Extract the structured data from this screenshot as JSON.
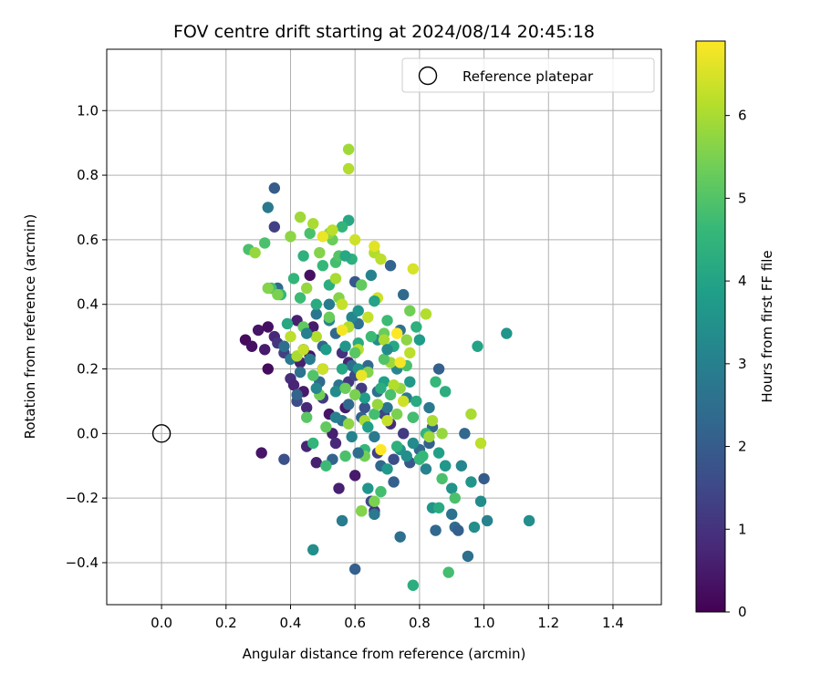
{
  "chart_data": {
    "type": "scatter",
    "title": "FOV centre drift starting at 2024/08/14 20:45:18",
    "xlabel": "Angular distance from reference (arcmin)",
    "ylabel": "Rotation from reference (arcmin)",
    "xlim": [
      -0.17,
      1.55
    ],
    "ylim": [
      -0.53,
      1.19
    ],
    "xticks": [
      0.0,
      0.2,
      0.4,
      0.6,
      0.8,
      1.0,
      1.2,
      1.4
    ],
    "xtick_labels": [
      "0.0",
      "0.2",
      "0.4",
      "0.6",
      "0.8",
      "1.0",
      "1.2",
      "1.4"
    ],
    "yticks": [
      -0.4,
      -0.2,
      0.0,
      0.2,
      0.4,
      0.6,
      0.8,
      1.0
    ],
    "ytick_labels": [
      "−0.4",
      "−0.2",
      "0.0",
      "0.2",
      "0.4",
      "0.6",
      "0.8",
      "1.0"
    ],
    "grid": true,
    "legend": {
      "position": "top-right",
      "label": "Reference platepar"
    },
    "reference_point": {
      "x": 0.0,
      "y": 0.0,
      "marker": "hollow-circle"
    },
    "colorbar": {
      "label": "Hours from first FF file",
      "range": [
        0,
        6.9
      ],
      "ticks": [
        0,
        1,
        2,
        3,
        4,
        5,
        6
      ],
      "tick_labels": [
        "0",
        "1",
        "2",
        "3",
        "4",
        "5",
        "6"
      ],
      "colormap": "viridis",
      "stops": [
        "#440154",
        "#482878",
        "#3e4a89",
        "#31688e",
        "#26828e",
        "#1f9e89",
        "#35b779",
        "#6ece58",
        "#b5de2b",
        "#fde725"
      ]
    },
    "points": [
      [
        0.26,
        0.29,
        0.2
      ],
      [
        0.28,
        0.27,
        0.3
      ],
      [
        0.3,
        0.32,
        0.4
      ],
      [
        0.32,
        0.26,
        0.5
      ],
      [
        0.33,
        0.33,
        0.3
      ],
      [
        0.33,
        0.2,
        0.2
      ],
      [
        0.31,
        -0.06,
        0.4
      ],
      [
        0.35,
        0.3,
        0.8
      ],
      [
        0.36,
        0.28,
        1.1
      ],
      [
        0.38,
        0.25,
        1.3
      ],
      [
        0.4,
        0.17,
        0.9
      ],
      [
        0.41,
        0.15,
        0.7
      ],
      [
        0.43,
        0.22,
        0.6
      ],
      [
        0.44,
        0.13,
        0.5
      ],
      [
        0.45,
        0.08,
        0.8
      ],
      [
        0.42,
        0.1,
        1.6
      ],
      [
        0.42,
        0.12,
        2.2
      ],
      [
        0.42,
        0.35,
        0.6
      ],
      [
        0.44,
        0.26,
        0.5
      ],
      [
        0.46,
        0.24,
        0.4
      ],
      [
        0.46,
        0.49,
        0.3
      ],
      [
        0.47,
        0.33,
        0.5
      ],
      [
        0.45,
        -0.04,
        0.7
      ],
      [
        0.48,
        -0.09,
        0.6
      ],
      [
        0.5,
        0.2,
        0.9
      ],
      [
        0.5,
        0.11,
        1.2
      ],
      [
        0.52,
        0.06,
        0.4
      ],
      [
        0.53,
        0.0,
        0.6
      ],
      [
        0.54,
        -0.03,
        0.8
      ],
      [
        0.56,
        0.25,
        1.0
      ],
      [
        0.55,
        -0.17,
        0.6
      ],
      [
        0.57,
        0.08,
        0.5
      ],
      [
        0.58,
        0.22,
        0.7
      ],
      [
        0.58,
        0.16,
        1.1
      ],
      [
        0.6,
        0.18,
        1.5
      ],
      [
        0.6,
        -0.13,
        0.5
      ],
      [
        0.62,
        0.14,
        1.2
      ],
      [
        0.63,
        0.08,
        1.8
      ],
      [
        0.65,
        -0.21,
        1.5
      ],
      [
        0.66,
        -0.24,
        1.0
      ],
      [
        0.67,
        -0.06,
        1.3
      ],
      [
        0.69,
        0.06,
        1.4
      ],
      [
        0.71,
        0.03,
        0.9
      ],
      [
        0.72,
        -0.08,
        1.6
      ],
      [
        0.75,
        0.0,
        1.2
      ],
      [
        0.77,
        -0.09,
        1.9
      ],
      [
        0.8,
        -0.05,
        2.0
      ],
      [
        0.83,
        -0.03,
        2.1
      ],
      [
        0.38,
        -0.08,
        1.7
      ],
      [
        0.35,
        0.64,
        1.3
      ],
      [
        0.35,
        0.76,
        2.0
      ],
      [
        0.33,
        0.7,
        2.8
      ],
      [
        0.36,
        0.45,
        2.4
      ],
      [
        0.38,
        0.27,
        2.5
      ],
      [
        0.4,
        0.23,
        2.8
      ],
      [
        0.43,
        0.19,
        2.6
      ],
      [
        0.46,
        0.23,
        2.9
      ],
      [
        0.48,
        0.37,
        2.7
      ],
      [
        0.49,
        0.16,
        2.4
      ],
      [
        0.5,
        0.27,
        2.2
      ],
      [
        0.52,
        0.4,
        2.9
      ],
      [
        0.54,
        0.31,
        2.3
      ],
      [
        0.55,
        0.15,
        2.7
      ],
      [
        0.56,
        0.04,
        2.6
      ],
      [
        0.58,
        0.09,
        2.3
      ],
      [
        0.59,
        0.21,
        2.5
      ],
      [
        0.6,
        0.47,
        1.9
      ],
      [
        0.61,
        0.34,
        2.6
      ],
      [
        0.62,
        0.05,
        2.2
      ],
      [
        0.64,
        0.21,
        2.4
      ],
      [
        0.66,
        -0.01,
        2.8
      ],
      [
        0.67,
        0.13,
        2.5
      ],
      [
        0.68,
        -0.1,
        2.3
      ],
      [
        0.7,
        0.08,
        2.7
      ],
      [
        0.71,
        0.52,
        2.2
      ],
      [
        0.72,
        -0.15,
        2.1
      ],
      [
        0.74,
        0.32,
        2.6
      ],
      [
        0.75,
        0.43,
        2.4
      ],
      [
        0.76,
        0.11,
        2.9
      ],
      [
        0.78,
        0.05,
        2.6
      ],
      [
        0.8,
        -0.05,
        2.4
      ],
      [
        0.83,
        0.08,
        2.8
      ],
      [
        0.84,
        0.02,
        2.2
      ],
      [
        0.86,
        0.2,
        2.1
      ],
      [
        0.88,
        -0.1,
        2.9
      ],
      [
        0.9,
        -0.25,
        2.6
      ],
      [
        0.91,
        -0.29,
        2.4
      ],
      [
        0.92,
        -0.3,
        2.1
      ],
      [
        0.94,
        0.0,
        2.3
      ],
      [
        0.95,
        -0.38,
        2.5
      ],
      [
        1.0,
        -0.14,
        2.0
      ],
      [
        0.85,
        -0.3,
        2.3
      ],
      [
        0.74,
        -0.32,
        2.5
      ],
      [
        0.6,
        -0.42,
        2.1
      ],
      [
        0.56,
        -0.27,
        2.9
      ],
      [
        0.66,
        -0.25,
        2.8
      ],
      [
        0.53,
        -0.08,
        2.2
      ],
      [
        0.47,
        -0.36,
        3.4
      ],
      [
        0.52,
        0.35,
        3.1
      ],
      [
        0.54,
        0.13,
        3.3
      ],
      [
        0.57,
        0.27,
        3.6
      ],
      [
        0.59,
        0.36,
        3.2
      ],
      [
        0.61,
        0.2,
        3.5
      ],
      [
        0.63,
        0.11,
        3.8
      ],
      [
        0.64,
        -0.17,
        3.6
      ],
      [
        0.65,
        0.49,
        3.1
      ],
      [
        0.67,
        0.29,
        3.4
      ],
      [
        0.69,
        0.16,
        3.9
      ],
      [
        0.7,
        -0.11,
        3.7
      ],
      [
        0.73,
        0.2,
        3.2
      ],
      [
        0.74,
        -0.05,
        3.5
      ],
      [
        0.76,
        -0.07,
        3.4
      ],
      [
        0.78,
        -0.03,
        3.3
      ],
      [
        0.8,
        0.29,
        3.8
      ],
      [
        0.82,
        -0.11,
        3.1
      ],
      [
        0.84,
        -0.23,
        3.6
      ],
      [
        0.86,
        -0.06,
        3.9
      ],
      [
        0.88,
        -0.1,
        3.7
      ],
      [
        0.9,
        -0.17,
        3.5
      ],
      [
        0.93,
        -0.1,
        3.2
      ],
      [
        0.96,
        -0.15,
        3.6
      ],
      [
        0.97,
        -0.29,
        3.4
      ],
      [
        0.99,
        -0.21,
        3.3
      ],
      [
        1.01,
        -0.27,
        3.1
      ],
      [
        1.07,
        0.31,
        3.6
      ],
      [
        1.14,
        -0.27,
        3.4
      ],
      [
        0.98,
        0.27,
        4.0
      ],
      [
        0.78,
        -0.47,
        4.3
      ],
      [
        0.89,
        -0.43,
        4.8
      ],
      [
        0.86,
        -0.23,
        4.2
      ],
      [
        0.82,
        0.0,
        4.5
      ],
      [
        0.85,
        0.16,
        4.6
      ],
      [
        0.79,
        0.33,
        4.4
      ],
      [
        0.76,
        0.21,
        4.9
      ],
      [
        0.72,
        0.27,
        4.1
      ],
      [
        0.7,
        0.35,
        4.7
      ],
      [
        0.68,
        0.14,
        4.3
      ],
      [
        0.66,
        0.06,
        4.8
      ],
      [
        0.63,
        -0.05,
        4.6
      ],
      [
        0.61,
        0.28,
        4.2
      ],
      [
        0.59,
        0.54,
        4.4
      ],
      [
        0.58,
        0.66,
        4.1
      ],
      [
        0.56,
        0.64,
        4.5
      ],
      [
        0.54,
        0.53,
        4.8
      ],
      [
        0.52,
        0.46,
        4.3
      ],
      [
        0.5,
        0.52,
        4.6
      ],
      [
        0.48,
        0.4,
        4.2
      ],
      [
        0.46,
        0.62,
        4.9
      ],
      [
        0.44,
        0.55,
        4.4
      ],
      [
        0.43,
        0.42,
        4.7
      ],
      [
        0.41,
        0.48,
        4.5
      ],
      [
        0.39,
        0.34,
        4.1
      ],
      [
        0.37,
        0.43,
        4.6
      ],
      [
        0.34,
        0.45,
        4.8
      ],
      [
        0.32,
        0.59,
        4.9
      ],
      [
        0.27,
        0.57,
        4.9
      ],
      [
        0.47,
        -0.03,
        4.5
      ],
      [
        0.51,
        -0.1,
        4.7
      ],
      [
        0.57,
        -0.07,
        4.9
      ],
      [
        0.62,
        -0.24,
        4.9
      ],
      [
        0.68,
        -0.18,
        4.8
      ],
      [
        0.73,
        -0.04,
        4.4
      ],
      [
        0.78,
        0.05,
        4.8
      ],
      [
        0.8,
        -0.08,
        4.6
      ],
      [
        0.87,
        -0.14,
        4.9
      ],
      [
        0.91,
        -0.2,
        4.9
      ],
      [
        0.45,
        0.05,
        5.1
      ],
      [
        0.49,
        0.12,
        5.4
      ],
      [
        0.51,
        0.02,
        5.2
      ],
      [
        0.53,
        0.6,
        5.3
      ],
      [
        0.55,
        0.42,
        5.6
      ],
      [
        0.57,
        0.14,
        5.3
      ],
      [
        0.58,
        0.03,
        5.7
      ],
      [
        0.6,
        0.12,
        5.5
      ],
      [
        0.62,
        0.46,
        5.2
      ],
      [
        0.63,
        -0.07,
        5.4
      ],
      [
        0.64,
        0.19,
        5.6
      ],
      [
        0.66,
        -0.21,
        5.5
      ],
      [
        0.67,
        0.09,
        5.8
      ],
      [
        0.69,
        0.31,
        5.3
      ],
      [
        0.71,
        0.22,
        5.9
      ],
      [
        0.73,
        0.06,
        5.5
      ],
      [
        0.74,
        0.14,
        5.8
      ],
      [
        0.76,
        0.29,
        5.7
      ],
      [
        0.77,
        0.38,
        5.4
      ],
      [
        0.82,
        0.37,
        6.1
      ],
      [
        0.84,
        0.04,
        6.0
      ],
      [
        0.87,
        0.0,
        5.8
      ],
      [
        0.96,
        0.06,
        6.0
      ],
      [
        0.99,
        -0.03,
        6.2
      ],
      [
        0.83,
        -0.01,
        5.9
      ],
      [
        0.62,
        -0.24,
        5.6
      ],
      [
        0.58,
        0.88,
        5.9
      ],
      [
        0.58,
        0.82,
        6.1
      ],
      [
        0.52,
        0.62,
        5.7
      ],
      [
        0.49,
        0.56,
        5.6
      ],
      [
        0.47,
        0.65,
        6.0
      ],
      [
        0.45,
        0.45,
        5.8
      ],
      [
        0.43,
        0.67,
        5.9
      ],
      [
        0.4,
        0.61,
        5.7
      ],
      [
        0.36,
        0.43,
        5.5
      ],
      [
        0.33,
        0.45,
        5.6
      ],
      [
        0.29,
        0.56,
        5.8
      ],
      [
        0.4,
        0.3,
        6.2
      ],
      [
        0.42,
        0.24,
        6.0
      ],
      [
        0.44,
        0.26,
        6.3
      ],
      [
        0.48,
        0.3,
        6.1
      ],
      [
        0.5,
        0.2,
        6.4
      ],
      [
        0.53,
        0.63,
        6.2
      ],
      [
        0.54,
        0.48,
        6.0
      ],
      [
        0.56,
        0.4,
        6.3
      ],
      [
        0.58,
        0.33,
        6.1
      ],
      [
        0.6,
        0.6,
        6.4
      ],
      [
        0.61,
        0.26,
        6.2
      ],
      [
        0.63,
        0.04,
        6.0
      ],
      [
        0.64,
        0.36,
        6.3
      ],
      [
        0.66,
        0.56,
        6.1
      ],
      [
        0.67,
        0.42,
        6.4
      ],
      [
        0.68,
        0.54,
        6.2
      ],
      [
        0.69,
        0.29,
        6.0
      ],
      [
        0.7,
        0.04,
        6.3
      ],
      [
        0.72,
        0.15,
        6.1
      ],
      [
        0.75,
        0.1,
        6.4
      ],
      [
        0.77,
        0.25,
        6.2
      ],
      [
        0.78,
        0.51,
        6.5
      ],
      [
        0.74,
        0.22,
        6.8
      ],
      [
        0.73,
        0.31,
        6.9
      ],
      [
        0.68,
        -0.05,
        6.9
      ],
      [
        0.62,
        0.18,
        6.7
      ],
      [
        0.56,
        0.32,
        6.8
      ],
      [
        0.5,
        0.61,
        6.7
      ],
      [
        0.66,
        0.58,
        6.6
      ],
      [
        0.52,
        0.36,
        5.3
      ],
      [
        0.47,
        0.18,
        5.0
      ],
      [
        0.44,
        0.33,
        5.2
      ],
      [
        0.55,
        0.55,
        5.0
      ],
      [
        0.6,
        0.25,
        5.1
      ],
      [
        0.65,
        0.3,
        4.7
      ],
      [
        0.69,
        0.23,
        5.0
      ],
      [
        0.71,
        0.12,
        4.9
      ],
      [
        0.79,
        0.1,
        4.2
      ],
      [
        0.81,
        -0.07,
        4.6
      ],
      [
        0.88,
        0.13,
        4.3
      ],
      [
        0.56,
        0.2,
        4.1
      ],
      [
        0.54,
        0.05,
        3.0
      ],
      [
        0.59,
        -0.01,
        3.1
      ],
      [
        0.64,
        0.02,
        3.9
      ],
      [
        0.51,
        0.26,
        3.8
      ],
      [
        0.66,
        0.41,
        4.0
      ],
      [
        0.61,
        0.38,
        3.6
      ],
      [
        0.57,
        0.55,
        4.1
      ],
      [
        0.48,
        0.14,
        3.2
      ],
      [
        0.45,
        0.31,
        3.0
      ],
      [
        0.61,
        -0.06,
        2.5
      ],
      [
        0.7,
        0.26,
        3.3
      ],
      [
        0.77,
        0.16,
        3.7
      ]
    ]
  }
}
